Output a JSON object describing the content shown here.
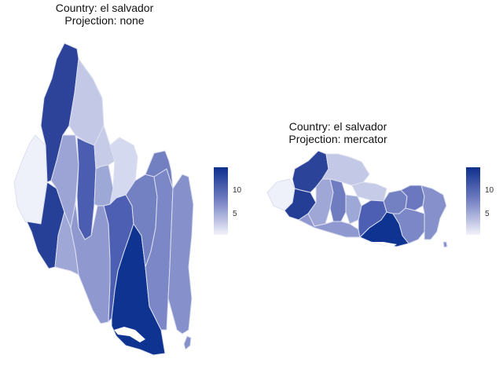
{
  "panels": [
    {
      "id": "left",
      "title_line1": "Country: el salvador",
      "title_line2": "Projection: none",
      "legend_ticks": [
        "10",
        "5"
      ]
    },
    {
      "id": "right",
      "title_line1": "Country: el salvador",
      "title_line2": "Projection: mercator",
      "legend_ticks": [
        "10",
        "5"
      ]
    }
  ],
  "colors": {
    "scale_high": "#0d2f8c",
    "scale_mid": "#6c79bf",
    "scale_low": "#f2f3fb",
    "border": "#dde0ef"
  }
}
